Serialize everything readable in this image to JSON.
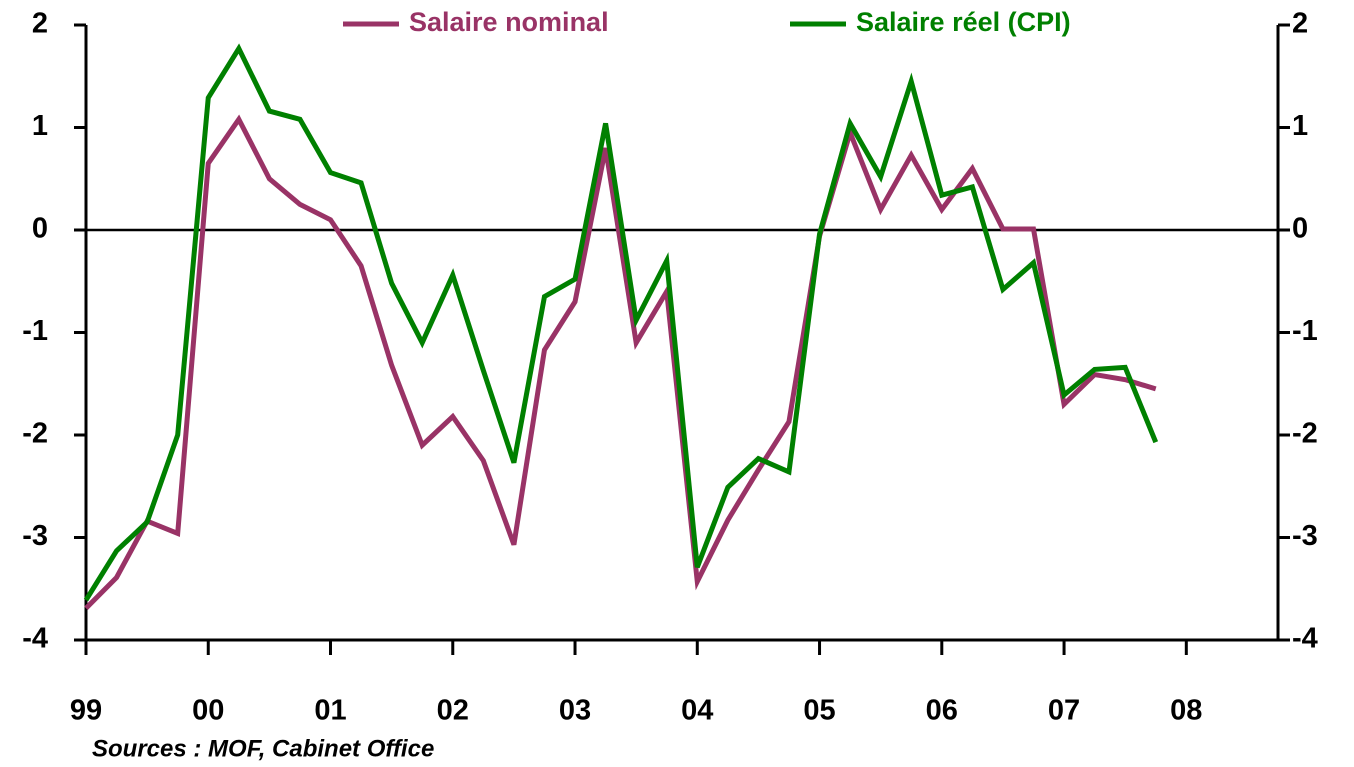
{
  "chart_data": {
    "type": "line",
    "x": [
      1999,
      1999.25,
      1999.5,
      1999.75,
      2000,
      2000.25,
      2000.5,
      2000.75,
      2001,
      2001.25,
      2001.5,
      2001.75,
      2002,
      2002.25,
      2002.5,
      2002.75,
      2003,
      2003.25,
      2003.5,
      2003.75,
      2004,
      2004.25,
      2004.5,
      2004.75,
      2005,
      2005.25,
      2005.5,
      2005.75,
      2006,
      2006.25,
      2006.5,
      2006.75,
      2007,
      2007.25,
      2007.5,
      2007.75
    ],
    "series": [
      {
        "name": "Salaire nominal",
        "color": "#993366",
        "values": [
          -3.69,
          -3.39,
          -2.84,
          -2.96,
          0.65,
          1.08,
          0.5,
          0.25,
          0.1,
          -0.35,
          -1.32,
          -2.1,
          -1.82,
          -2.25,
          -3.07,
          -1.17,
          -0.7,
          0.8,
          -1.1,
          -0.6,
          -3.43,
          -2.83,
          -2.34,
          -1.87,
          -0.06,
          0.95,
          0.2,
          0.73,
          0.2,
          0.6,
          0.01,
          0.01,
          -1.7,
          -1.41,
          -1.46,
          -1.55
        ]
      },
      {
        "name": "Salaire réel (CPI)",
        "color": "#008000",
        "values": [
          -3.61,
          -3.13,
          -2.85,
          -2.0,
          1.29,
          1.77,
          1.16,
          1.08,
          0.56,
          0.46,
          -0.52,
          -1.1,
          -0.44,
          -1.37,
          -2.27,
          -0.65,
          -0.48,
          1.04,
          -0.88,
          -0.3,
          -3.29,
          -2.51,
          -2.23,
          -2.36,
          -0.04,
          1.04,
          0.52,
          1.45,
          0.34,
          0.42,
          -0.58,
          -0.32,
          -1.61,
          -1.36,
          -1.34,
          -2.07
        ]
      }
    ],
    "xlim": [
      1999,
      2008.75
    ],
    "xticks": [
      {
        "value": 1999,
        "label": "99"
      },
      {
        "value": 2000,
        "label": "00"
      },
      {
        "value": 2001,
        "label": "01"
      },
      {
        "value": 2002,
        "label": "02"
      },
      {
        "value": 2003,
        "label": "03"
      },
      {
        "value": 2004,
        "label": "04"
      },
      {
        "value": 2005,
        "label": "05"
      },
      {
        "value": 2006,
        "label": "06"
      },
      {
        "value": 2007,
        "label": "07"
      },
      {
        "value": 2008,
        "label": "08"
      }
    ],
    "ylim": [
      -4,
      2
    ],
    "yticks": [
      -4,
      -3,
      -2,
      -1,
      0,
      1,
      2
    ],
    "y2lim": [
      -4,
      2
    ],
    "y2ticks": [
      -4,
      -3,
      -2,
      -1,
      0,
      1,
      2
    ],
    "legend": "top",
    "source": "Sources : MOF, Cabinet Office"
  }
}
